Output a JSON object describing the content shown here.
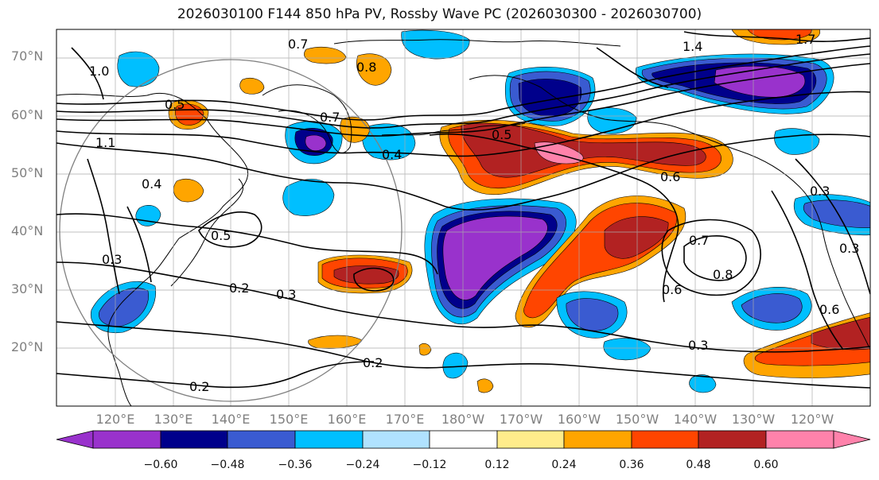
{
  "title": "2026030100 F144 850 hPa PV, Rossby Wave PC (2026030300 - 2026030700)",
  "lat_ticks": [
    "70°N",
    "60°N",
    "50°N",
    "40°N",
    "30°N",
    "20°N"
  ],
  "lon_ticks": [
    "120°E",
    "130°E",
    "140°E",
    "150°E",
    "160°E",
    "170°E",
    "180°W",
    "170°W",
    "160°W",
    "150°W",
    "140°W",
    "130°W",
    "120°W"
  ],
  "contour_labels": [
    "0.7",
    "0.8",
    "1.4",
    "1.7",
    "1.0",
    "0.5",
    "0.7",
    "0.4",
    "0.5",
    "0.6",
    "0.4",
    "0.5",
    "0.3",
    "0.2",
    "0.3",
    "0.2",
    "0.2",
    "0.7",
    "0.8",
    "0.6",
    "0.6",
    "0.3",
    "0.3",
    "1.1",
    "0.3"
  ],
  "colorbar": {
    "labels": [
      "−0.60",
      "−0.48",
      "−0.36",
      "−0.24",
      "−0.12",
      "0.12",
      "0.24",
      "0.36",
      "0.48",
      "0.60"
    ],
    "colors": [
      "#9932CC",
      "#00008B",
      "#3A5BD1",
      "#00BFFF",
      "#B0E2FF",
      "#FFFFFF",
      "#FFEC8B",
      "#FFA500",
      "#FF4500",
      "#B22222",
      "#FF82AB"
    ]
  }
}
